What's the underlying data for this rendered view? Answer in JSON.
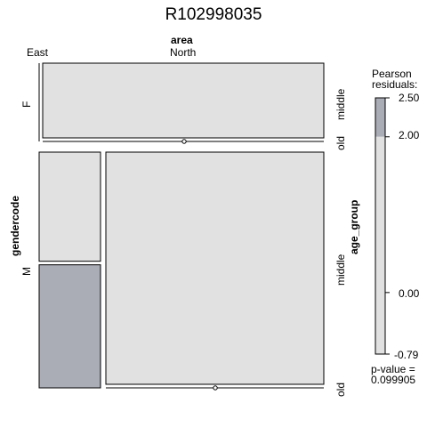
{
  "chart_data": {
    "type": "mosaic",
    "title": "R102998035",
    "top_variable": "area",
    "left_variable": "gendercode",
    "right_variable": "age_group",
    "area_levels": [
      "East",
      "North"
    ],
    "gender_levels": [
      "F",
      "M"
    ],
    "age_levels": [
      "middle",
      "old"
    ],
    "cells": [
      {
        "gender": "F",
        "area": "East",
        "age": "middle",
        "share_of_gender": 0.0,
        "residual": 0.0
      },
      {
        "gender": "F",
        "area": "East",
        "age": "old",
        "share_of_gender": 0.0,
        "residual": 0.0
      },
      {
        "gender": "F",
        "area": "North",
        "age": "middle",
        "share_of_gender": 1.0,
        "residual": 0.2
      },
      {
        "gender": "F",
        "area": "North",
        "age": "old",
        "share_of_gender": 0.0,
        "residual": 0.0
      },
      {
        "gender": "M",
        "area": "East",
        "age": "middle",
        "share_of_gender": 0.47,
        "residual": -0.5
      },
      {
        "gender": "M",
        "area": "East",
        "age": "old",
        "share_of_gender": 0.53,
        "residual": 2.3
      },
      {
        "gender": "M",
        "area": "North",
        "age": "middle",
        "share_of_gender": 1.0,
        "residual": -0.4
      },
      {
        "gender": "M",
        "area": "North",
        "age": "old",
        "share_of_gender": 0.0,
        "residual": 0.0
      }
    ],
    "gender_share": {
      "F": 0.3,
      "M": 0.7
    },
    "area_share_within_M": {
      "East": 0.22,
      "North": 0.78
    },
    "legend": {
      "title_line1": "Pearson",
      "title_line2": "residuals:",
      "min": -0.79,
      "max": 2.5,
      "shade_threshold": 2.0,
      "ticks": [
        "2.50",
        "2.00",
        "0.00",
        "-0.79"
      ],
      "tick_values": [
        2.5,
        2.0,
        0.0,
        -0.79
      ]
    },
    "p_value_label": "p-value =",
    "p_value": "0.099905",
    "colors": {
      "neutral": "#e1e1e1",
      "shaded": "#aaacb6",
      "border": "#000000"
    }
  }
}
